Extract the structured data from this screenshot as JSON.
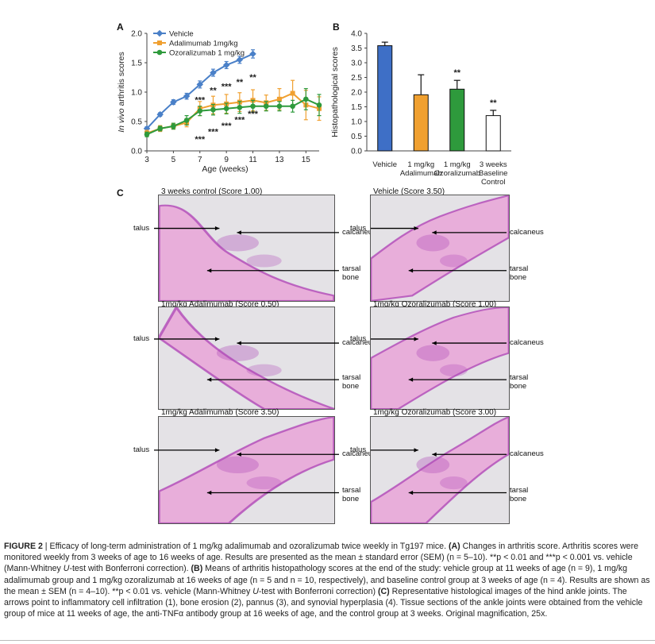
{
  "panel_a": {
    "letter": "A",
    "chart_data": {
      "type": "line",
      "ylabel_italic": "In vivo",
      "ylabel_rest": " arthritis scores",
      "xlabel": "Age (weeks)",
      "ylim": [
        0,
        2.0
      ],
      "xlim": [
        3,
        16
      ],
      "y_ticks": [
        "0.0",
        "0.5",
        "1.0",
        "1.5",
        "2.0"
      ],
      "x_ticks": [
        "3",
        "5",
        "7",
        "9",
        "11",
        "13",
        "15"
      ],
      "legend_position": "top-left",
      "series": [
        {
          "name": "Vehicle",
          "color": "#4a80c8",
          "x": [
            3,
            4,
            5,
            6,
            7,
            8,
            9,
            10,
            11
          ],
          "y": [
            0.38,
            0.62,
            0.83,
            0.93,
            1.13,
            1.33,
            1.46,
            1.55,
            1.65
          ],
          "err": [
            0.03,
            0.03,
            0.04,
            0.05,
            0.06,
            0.06,
            0.06,
            0.06,
            0.07
          ]
        },
        {
          "name": "Adalimumab 1mg/kg",
          "color": "#f0a030",
          "x": [
            3,
            4,
            5,
            6,
            7,
            8,
            9,
            10,
            11,
            12,
            13,
            14,
            15,
            16
          ],
          "y": [
            0.3,
            0.38,
            0.42,
            0.48,
            0.72,
            0.78,
            0.8,
            0.83,
            0.86,
            0.82,
            0.88,
            0.98,
            0.78,
            0.72
          ],
          "err": [
            0.05,
            0.05,
            0.05,
            0.07,
            0.12,
            0.15,
            0.16,
            0.16,
            0.18,
            0.13,
            0.18,
            0.22,
            0.25,
            0.2
          ]
        },
        {
          "name": "Ozoralizumab 1 mg/kg",
          "color": "#2e9a3c",
          "x": [
            3,
            4,
            5,
            6,
            7,
            8,
            9,
            10,
            11,
            12,
            13,
            14,
            15,
            16
          ],
          "y": [
            0.28,
            0.38,
            0.42,
            0.52,
            0.68,
            0.7,
            0.72,
            0.74,
            0.76,
            0.76,
            0.76,
            0.76,
            0.88,
            0.78
          ],
          "err": [
            0.04,
            0.04,
            0.05,
            0.08,
            0.08,
            0.09,
            0.09,
            0.1,
            0.1,
            0.08,
            0.08,
            0.1,
            0.18,
            0.18
          ]
        }
      ],
      "annotations": [
        {
          "text": "**",
          "x": 8,
          "y": 0.98
        },
        {
          "text": "***",
          "x": 7,
          "y": 0.82
        },
        {
          "text": "***",
          "x": 9,
          "y": 1.05
        },
        {
          "text": "**",
          "x": 10,
          "y": 1.12
        },
        {
          "text": "**",
          "x": 11,
          "y": 1.2
        },
        {
          "text": "***",
          "x": 7,
          "y": 0.15
        },
        {
          "text": "***",
          "x": 8,
          "y": 0.28
        },
        {
          "text": "***",
          "x": 9,
          "y": 0.38
        },
        {
          "text": "***",
          "x": 10,
          "y": 0.48
        },
        {
          "text": "***",
          "x": 11,
          "y": 0.58
        }
      ]
    }
  },
  "panel_b": {
    "letter": "B",
    "chart_data": {
      "type": "bar",
      "ylabel": "Histopathological scores",
      "ylim": [
        0,
        4.0
      ],
      "y_ticks": [
        "0.0",
        "0.5",
        "1.0",
        "1.5",
        "2.0",
        "2.5",
        "3.0",
        "3.5",
        "4.0"
      ],
      "categories": [
        [
          "Vehicle"
        ],
        [
          "1 mg/kg",
          "Adalimumab"
        ],
        [
          "1 mg/kg",
          "Ozoralizumab"
        ],
        [
          "3 weeks",
          "Baseline",
          "Control"
        ]
      ],
      "values": [
        3.58,
        1.91,
        2.1,
        1.2
      ],
      "errors": [
        0.12,
        0.68,
        0.3,
        0.18
      ],
      "colors": [
        "#3e6fc6",
        "#f0a030",
        "#2e9a3c",
        "#ffffff"
      ],
      "significance": [
        "",
        "",
        "**",
        "**"
      ]
    }
  },
  "panel_c": {
    "letter": "C",
    "images": [
      {
        "title": "3 weeks control (Score 1.00)",
        "labels": {
          "left1": "talus",
          "right1": "calcaneus",
          "right2": "tarsal",
          "right3": "bone"
        }
      },
      {
        "title": "Vehicle (Score 3.50)",
        "labels": {
          "left1": "talus",
          "right1": "calcaneus",
          "right2": "tarsal",
          "right3": "bone"
        }
      },
      {
        "title": "1mg/kg Adalimumab (Score 0.50)",
        "labels": {
          "left1": "talus",
          "right1": "calcaneus",
          "right2": "tarsal",
          "right3": "bone"
        }
      },
      {
        "title": "1mg/kg Ozoralizumab (Score 1.00)",
        "labels": {
          "left1": "talus",
          "right1": "calcaneus",
          "right2": "tarsal",
          "right3": "bone"
        }
      },
      {
        "title": "1mg/kg Adalimumab (Score 3.50)",
        "labels": {
          "left1": "talus",
          "right1": "calcaneus",
          "right2": "tarsal",
          "right3": "bone"
        }
      },
      {
        "title": "1mg/kg Ozoralizumab (Score 3.00)",
        "labels": {
          "left1": "talus",
          "right1": "calcaneus",
          "right2": "tarsal",
          "right3": "bone"
        }
      }
    ],
    "tissue_colors": {
      "stain_light": "#e8a8d8",
      "stain_dark": "#b04ab8",
      "background": "#e4e2e6"
    }
  },
  "caption": {
    "figure_label": "FIGURE 2",
    "separator": " | ",
    "text_1": "Efficacy of long-term administration of 1 mg/kg adalimumab and ozoralizumab twice weekly in Tg197 mice. ",
    "a_label": "(A)",
    "text_2": " Changes in arthritis score. Arthritis scores were monitored weekly from 3 weeks of age to 16 weeks of age. Results are presented as the mean ± standard error (SEM) (n = 5–10). **p < 0.01 and ***p < 0.001 vs. vehicle (Mann-Whitney ",
    "u_test": "U",
    "text_3": "-test with Bonferroni correction). ",
    "b_label": "(B)",
    "text_4": " Means of arthritis histopathology scores at the end of the study: vehicle group at 11 weeks of age (n = 9), 1 mg/kg adalimumab group and 1 mg/kg ozoralizumab at 16 weeks of age (n = 5 and n = 10, respectively), and baseline control group at 3 weeks of age (n = 4). Results are shown as the mean ± SEM (n = 4–10). **p < 0.01 vs. vehicle (Mann-Whitney ",
    "u_test2": "U",
    "text_5": "-test with Bonferroni correction) ",
    "c_label": "(C)",
    "text_6": " Representative histological images of the hind ankle joints. The arrows point to inflammatory cell infiltration (1), bone erosion (2), pannus (3), and synovial hyperplasia (4). Tissue sections of the ankle joints were obtained from the vehicle group of mice at 11 weeks of age, the anti-TNFα antibody group at 16 weeks of age, and the control group at 3 weeks. Original magnification, 25x."
  }
}
